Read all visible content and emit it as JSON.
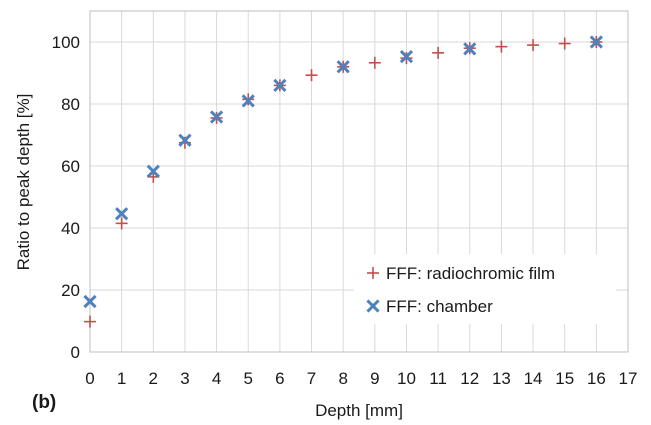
{
  "chart_data": {
    "type": "scatter",
    "xlabel": "Depth [mm]",
    "ylabel": "Ratio to peak depth  [%]",
    "panel_label": "(b)",
    "xlim": [
      0,
      17
    ],
    "ylim": [
      0,
      110
    ],
    "x_ticks": [
      0,
      1,
      2,
      3,
      4,
      5,
      6,
      7,
      8,
      9,
      10,
      11,
      12,
      13,
      14,
      15,
      16,
      17
    ],
    "y_ticks": [
      0,
      20,
      40,
      60,
      80,
      100
    ],
    "grid": true,
    "legend_position": "bottom-right",
    "series": [
      {
        "name": "FFF: radiochromic film",
        "marker": "plus",
        "color": "#c0504d",
        "x": [
          0,
          1,
          2,
          3,
          4,
          5,
          6,
          7,
          8,
          9,
          10,
          11,
          12,
          13,
          14,
          15,
          16
        ],
        "y": [
          9.8,
          41.5,
          56.5,
          67.5,
          75.5,
          81.5,
          86,
          89.3,
          92,
          93.3,
          94.8,
          96.5,
          98,
          98.5,
          99,
          99.5,
          100
        ]
      },
      {
        "name": "FFF: chamber",
        "marker": "x",
        "color": "#4f81bd",
        "x": [
          0,
          1,
          2,
          3,
          4,
          5,
          6,
          8,
          10,
          12,
          16
        ],
        "y": [
          16.3,
          44.6,
          58.3,
          68.3,
          75.8,
          81,
          86,
          92,
          95.3,
          97.8,
          100
        ]
      }
    ]
  }
}
